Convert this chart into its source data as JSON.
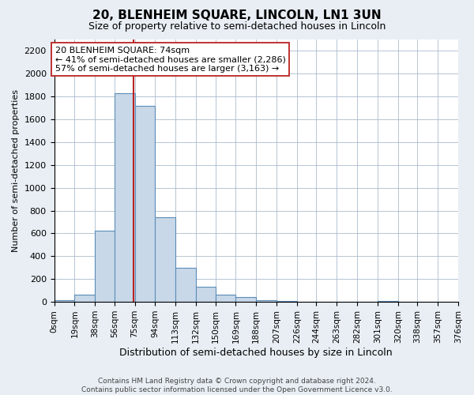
{
  "title": "20, BLENHEIM SQUARE, LINCOLN, LN1 3UN",
  "subtitle": "Size of property relative to semi-detached houses in Lincoln",
  "xlabel": "Distribution of semi-detached houses by size in Lincoln",
  "ylabel": "Number of semi-detached properties",
  "footer_line1": "Contains HM Land Registry data © Crown copyright and database right 2024.",
  "footer_line2": "Contains public sector information licensed under the Open Government Licence v3.0.",
  "bin_edges": [
    0,
    19,
    38,
    56,
    75,
    94,
    113,
    132,
    150,
    169,
    188,
    207,
    226,
    244,
    263,
    282,
    301,
    320,
    338,
    357,
    376
  ],
  "bin_labels": [
    "0sqm",
    "19sqm",
    "38sqm",
    "56sqm",
    "75sqm",
    "94sqm",
    "113sqm",
    "132sqm",
    "150sqm",
    "169sqm",
    "188sqm",
    "207sqm",
    "226sqm",
    "244sqm",
    "263sqm",
    "282sqm",
    "301sqm",
    "320sqm",
    "338sqm",
    "357sqm",
    "376sqm"
  ],
  "bar_values": [
    15,
    60,
    625,
    1830,
    1720,
    740,
    300,
    130,
    65,
    40,
    15,
    5,
    0,
    0,
    0,
    0,
    10,
    0,
    0,
    0
  ],
  "bar_facecolor": "#c8d8e8",
  "bar_edgecolor": "#5b8db8",
  "property_value": 74,
  "vline_color": "#bb2222",
  "annotation_title": "20 BLENHEIM SQUARE: 74sqm",
  "annotation_line1": "← 41% of semi-detached houses are smaller (2,286)",
  "annotation_line2": "57% of semi-detached houses are larger (3,163) →",
  "annotation_box_facecolor": "#ffffff",
  "annotation_box_edgecolor": "#bb2222",
  "ylim": [
    0,
    2300
  ],
  "yticks": [
    0,
    200,
    400,
    600,
    800,
    1000,
    1200,
    1400,
    1600,
    1800,
    2000,
    2200
  ],
  "bg_color": "#e8eef4",
  "plot_bg_color": "#ffffff",
  "grid_color": "#aabbcc",
  "title_fontsize": 11,
  "subtitle_fontsize": 9,
  "ylabel_fontsize": 8,
  "xlabel_fontsize": 9,
  "ytick_fontsize": 8,
  "xtick_fontsize": 7.5,
  "footer_fontsize": 6.5,
  "ann_fontsize": 8
}
